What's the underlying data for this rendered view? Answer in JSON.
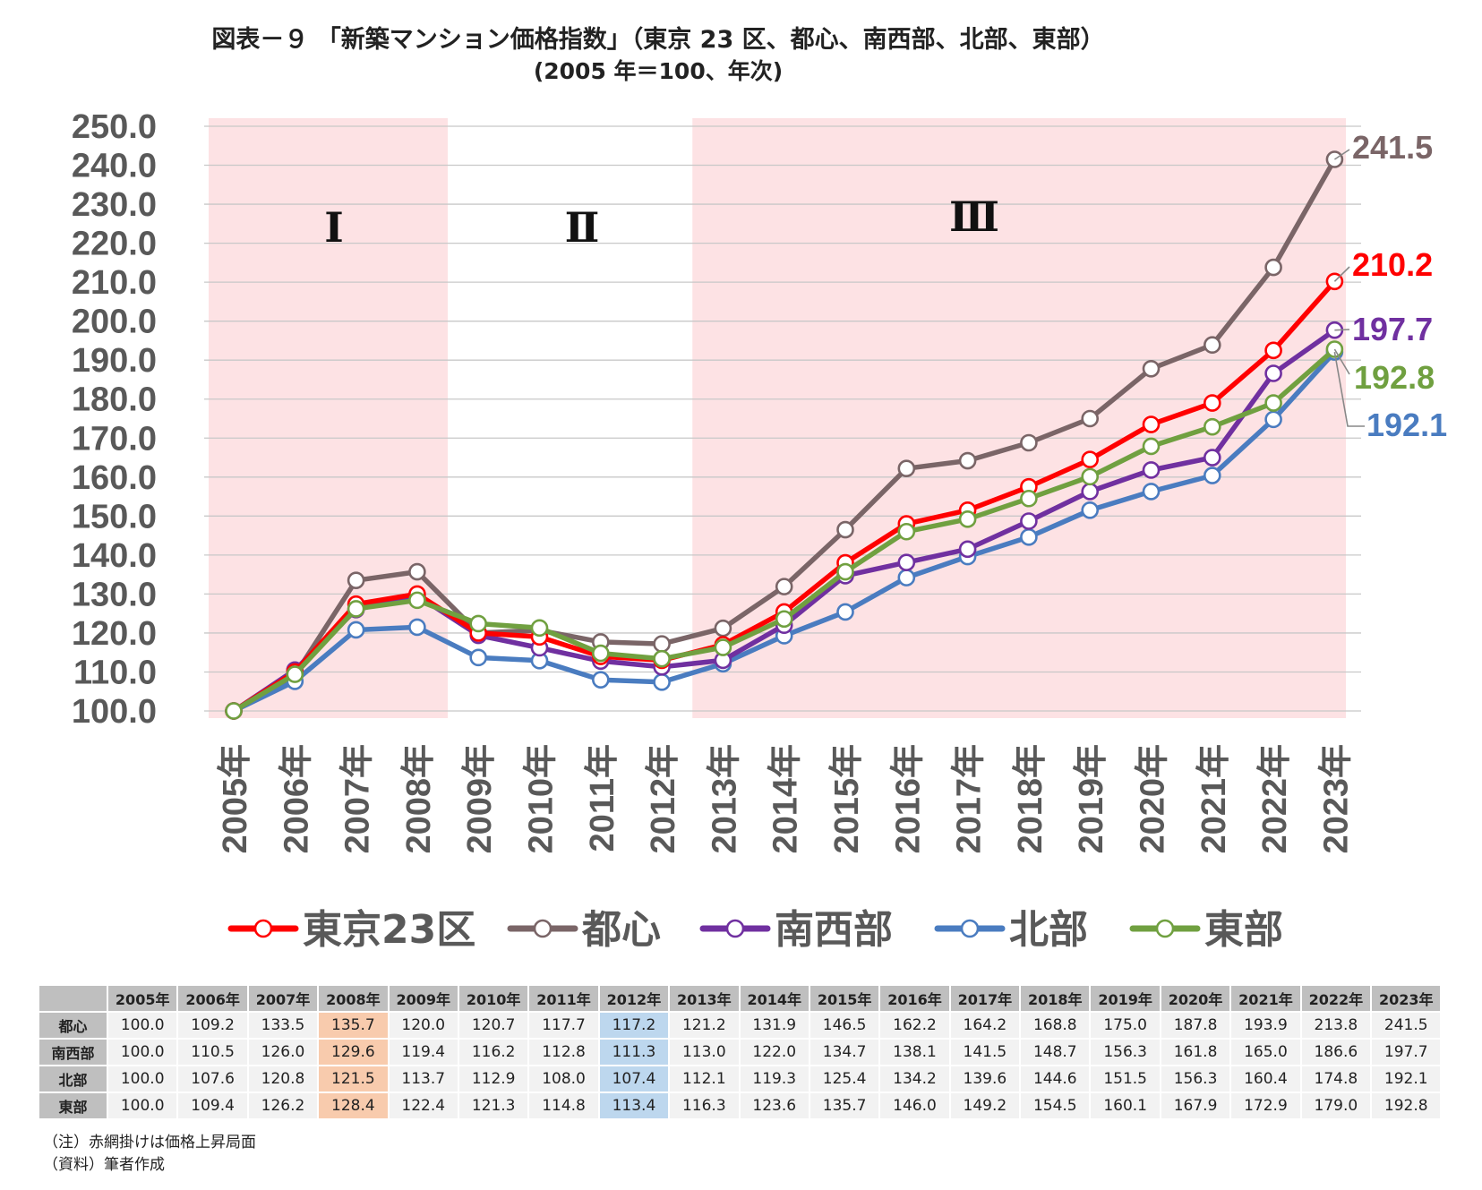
{
  "chart_data": {
    "type": "line",
    "title": "図表－９ 「新築マンション価格指数」（東京 23 区、都心、南西部、北部、東部）",
    "subtitle": "(2005 年＝100、年次)",
    "categories": [
      "2005年",
      "2006年",
      "2007年",
      "2008年",
      "2009年",
      "2010年",
      "2011年",
      "2012年",
      "2013年",
      "2014年",
      "2015年",
      "2016年",
      "2017年",
      "2018年",
      "2019年",
      "2020年",
      "2021年",
      "2022年",
      "2023年"
    ],
    "ylim": [
      100,
      250
    ],
    "yticks": [
      "100.0",
      "110.0",
      "120.0",
      "130.0",
      "140.0",
      "150.0",
      "160.0",
      "170.0",
      "180.0",
      "190.0",
      "200.0",
      "210.0",
      "220.0",
      "230.0",
      "240.0",
      "250.0"
    ],
    "grid": true,
    "legend_position": "bottom",
    "series": [
      {
        "name": "都心",
        "color": "#7a6567",
        "end_label": "241.5",
        "values": [
          100.0,
          109.2,
          133.5,
          135.7,
          120.0,
          120.7,
          117.7,
          117.2,
          121.2,
          131.9,
          146.5,
          162.2,
          164.2,
          168.8,
          175.0,
          187.8,
          193.9,
          213.8,
          241.5
        ]
      },
      {
        "name": "北部",
        "color": "#4a7cc0",
        "end_label": "192.1",
        "values": [
          100.0,
          107.6,
          120.8,
          121.5,
          113.7,
          112.9,
          108.0,
          107.4,
          112.1,
          119.3,
          125.4,
          134.2,
          139.6,
          144.6,
          151.5,
          156.3,
          160.4,
          174.8,
          192.1
        ]
      },
      {
        "name": "南西部",
        "color": "#7030a0",
        "end_label": "197.7",
        "values": [
          100.0,
          110.5,
          126.0,
          129.6,
          119.4,
          116.2,
          112.8,
          111.3,
          113.0,
          122.0,
          134.7,
          138.1,
          141.5,
          148.7,
          156.3,
          161.8,
          165.0,
          186.6,
          197.7
        ]
      },
      {
        "name": "東京23区",
        "color": "#ff0000",
        "end_label": "210.2",
        "values": [
          100.0,
          110.0,
          127.4,
          130.0,
          120.0,
          119.0,
          114.0,
          113.0,
          117.0,
          125.4,
          138.0,
          148.0,
          151.5,
          157.5,
          164.5,
          173.5,
          179.0,
          192.5,
          210.2
        ]
      },
      {
        "name": "東部",
        "color": "#70a040",
        "end_label": "192.8",
        "values": [
          100.0,
          109.4,
          126.2,
          128.4,
          122.4,
          121.3,
          114.8,
          113.4,
          116.3,
          123.6,
          135.7,
          146.0,
          149.2,
          154.5,
          160.1,
          167.9,
          172.9,
          179.0,
          192.8
        ]
      }
    ],
    "legend_order": [
      "東京23区",
      "都心",
      "南西部",
      "北部",
      "東部"
    ],
    "phases": [
      {
        "label": "Ⅰ",
        "from": "2005年",
        "to": "2008年",
        "color": "#fde2e4"
      },
      {
        "label": "Ⅱ",
        "from": "2009年",
        "to": "2012年",
        "color": "#ffffff"
      },
      {
        "label": "Ⅲ",
        "from": "2013年",
        "to": "2023年",
        "color": "#fde2e4"
      }
    ]
  },
  "table": {
    "headers": [
      "2005年",
      "2006年",
      "2007年",
      "2008年",
      "2009年",
      "2010年",
      "2011年",
      "2012年",
      "2013年",
      "2014年",
      "2015年",
      "2016年",
      "2017年",
      "2018年",
      "2019年",
      "2020年",
      "2021年",
      "2022年",
      "2023年"
    ],
    "rows": [
      {
        "label": "都心",
        "values": [
          "100.0",
          "109.2",
          "133.5",
          "135.7",
          "120.0",
          "120.7",
          "117.7",
          "117.2",
          "121.2",
          "131.9",
          "146.5",
          "162.2",
          "164.2",
          "168.8",
          "175.0",
          "187.8",
          "193.9",
          "213.8",
          "241.5"
        ]
      },
      {
        "label": "南西部",
        "values": [
          "100.0",
          "110.5",
          "126.0",
          "129.6",
          "119.4",
          "116.2",
          "112.8",
          "111.3",
          "113.0",
          "122.0",
          "134.7",
          "138.1",
          "141.5",
          "148.7",
          "156.3",
          "161.8",
          "165.0",
          "186.6",
          "197.7"
        ]
      },
      {
        "label": "北部",
        "values": [
          "100.0",
          "107.6",
          "120.8",
          "121.5",
          "113.7",
          "112.9",
          "108.0",
          "107.4",
          "112.1",
          "119.3",
          "125.4",
          "134.2",
          "139.6",
          "144.6",
          "151.5",
          "156.3",
          "160.4",
          "174.8",
          "192.1"
        ]
      },
      {
        "label": "東部",
        "values": [
          "100.0",
          "109.4",
          "126.2",
          "128.4",
          "122.4",
          "121.3",
          "114.8",
          "113.4",
          "116.3",
          "123.6",
          "135.7",
          "146.0",
          "149.2",
          "154.5",
          "160.1",
          "167.9",
          "172.9",
          "179.0",
          "192.8"
        ]
      }
    ],
    "highlight_peak_color": "#f8cbad",
    "highlight_low_color": "#bdd7ee"
  },
  "notes": {
    "note1": "（注）赤網掛けは価格上昇局面",
    "note2": "（資料）筆者作成"
  }
}
